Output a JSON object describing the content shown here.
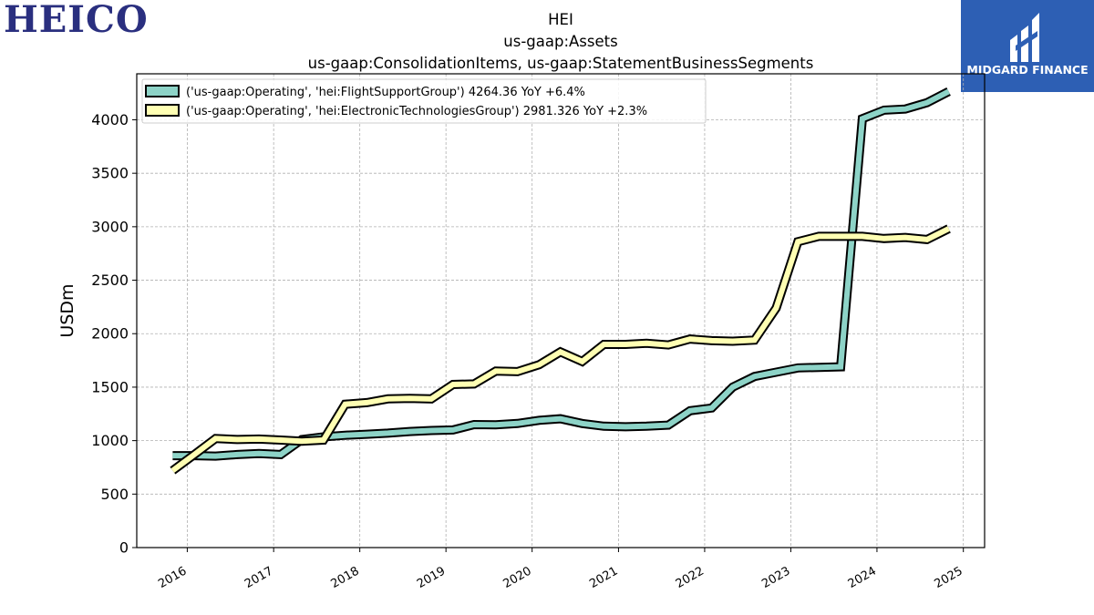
{
  "logos": {
    "company": "HEICO",
    "publisher": "MIDGARD FINANCE"
  },
  "colors": {
    "series_1": "#8dd3c7",
    "series_2": "#ffffb3",
    "outline": "#000000",
    "grid": "#b0b0b0",
    "publisher_bg": "#2d5fb4",
    "company_logo": "#2a2f7f"
  },
  "chart_data": {
    "type": "line",
    "title": "HEI",
    "subtitle_1": "us-gaap:Assets",
    "subtitle_2": "us-gaap:ConsolidationItems, us-gaap:StatementBusinessSegments",
    "ylabel": "USDm",
    "xlabel": "",
    "ylim": [
      0,
      4430
    ],
    "xlim": [
      "2015-06-01",
      "2025-04-01"
    ],
    "yticks": [
      0,
      500,
      1000,
      1500,
      2000,
      2500,
      3000,
      3500,
      4000
    ],
    "xticks": [
      "2016",
      "2017",
      "2018",
      "2019",
      "2020",
      "2021",
      "2022",
      "2023",
      "2024",
      "2025"
    ],
    "grid": true,
    "legend_position": "top-left",
    "series": [
      {
        "name": "('us-gaap:Operating', 'hei:FlightSupportGroup') 4264.36 YoY +6.4%",
        "points": [
          [
            "2015-10-31",
            860
          ],
          [
            "2016-01-31",
            860
          ],
          [
            "2016-04-30",
            855
          ],
          [
            "2016-07-31",
            870
          ],
          [
            "2016-10-31",
            880
          ],
          [
            "2017-01-31",
            870
          ],
          [
            "2017-04-30",
            1010
          ],
          [
            "2017-07-31",
            1035
          ],
          [
            "2017-10-31",
            1050
          ],
          [
            "2018-01-31",
            1060
          ],
          [
            "2018-04-30",
            1070
          ],
          [
            "2018-07-31",
            1085
          ],
          [
            "2018-10-31",
            1095
          ],
          [
            "2019-01-31",
            1100
          ],
          [
            "2019-04-30",
            1150
          ],
          [
            "2019-07-31",
            1148
          ],
          [
            "2019-10-31",
            1160
          ],
          [
            "2020-01-31",
            1190
          ],
          [
            "2020-04-30",
            1205
          ],
          [
            "2020-07-31",
            1160
          ],
          [
            "2020-10-31",
            1135
          ],
          [
            "2021-01-31",
            1130
          ],
          [
            "2021-04-30",
            1135
          ],
          [
            "2021-07-31",
            1145
          ],
          [
            "2021-10-31",
            1280
          ],
          [
            "2022-01-31",
            1305
          ],
          [
            "2022-04-30",
            1500
          ],
          [
            "2022-07-31",
            1600
          ],
          [
            "2022-10-31",
            1640
          ],
          [
            "2023-01-31",
            1680
          ],
          [
            "2023-04-30",
            1685
          ],
          [
            "2023-07-31",
            1690
          ],
          [
            "2023-10-31",
            4010
          ],
          [
            "2024-01-31",
            4090
          ],
          [
            "2024-04-30",
            4100
          ],
          [
            "2024-07-31",
            4160
          ],
          [
            "2024-10-31",
            4264.36
          ]
        ]
      },
      {
        "name": "('us-gaap:Operating', 'hei:ElectronicTechnologiesGroup') 2981.326 YoY +2.3%",
        "points": [
          [
            "2015-10-31",
            720
          ],
          [
            "2016-01-31",
            870
          ],
          [
            "2016-04-30",
            1020
          ],
          [
            "2016-07-31",
            1010
          ],
          [
            "2016-10-31",
            1015
          ],
          [
            "2017-01-31",
            1005
          ],
          [
            "2017-04-30",
            995
          ],
          [
            "2017-07-31",
            1005
          ],
          [
            "2017-10-31",
            1340
          ],
          [
            "2018-01-31",
            1355
          ],
          [
            "2018-04-30",
            1390
          ],
          [
            "2018-07-31",
            1395
          ],
          [
            "2018-10-31",
            1390
          ],
          [
            "2019-01-31",
            1525
          ],
          [
            "2019-04-30",
            1530
          ],
          [
            "2019-07-31",
            1650
          ],
          [
            "2019-10-31",
            1645
          ],
          [
            "2020-01-31",
            1710
          ],
          [
            "2020-04-30",
            1830
          ],
          [
            "2020-07-31",
            1740
          ],
          [
            "2020-10-31",
            1900
          ],
          [
            "2021-01-31",
            1900
          ],
          [
            "2021-04-30",
            1910
          ],
          [
            "2021-07-31",
            1895
          ],
          [
            "2021-10-31",
            1950
          ],
          [
            "2022-01-31",
            1935
          ],
          [
            "2022-04-30",
            1930
          ],
          [
            "2022-07-31",
            1940
          ],
          [
            "2022-10-31",
            2240
          ],
          [
            "2023-01-31",
            2860
          ],
          [
            "2023-04-30",
            2910
          ],
          [
            "2023-07-31",
            2910
          ],
          [
            "2023-10-31",
            2910
          ],
          [
            "2024-01-31",
            2890
          ],
          [
            "2024-04-30",
            2900
          ],
          [
            "2024-07-31",
            2880
          ],
          [
            "2024-10-31",
            2981.326
          ]
        ]
      }
    ]
  }
}
